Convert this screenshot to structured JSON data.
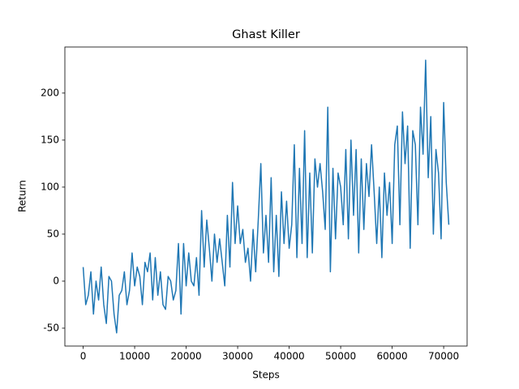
{
  "chart_data": {
    "type": "line",
    "title": "Ghast Killer",
    "x_label": "Steps",
    "y_label": "Return",
    "x": [
      0,
      500,
      1000,
      1500,
      2000,
      2500,
      3000,
      3500,
      4000,
      4500,
      5000,
      5500,
      6000,
      6500,
      7000,
      7500,
      8000,
      8500,
      9000,
      9500,
      10000,
      10500,
      11000,
      11500,
      12000,
      12500,
      13000,
      13500,
      14000,
      14500,
      15000,
      15500,
      16000,
      16500,
      17000,
      17500,
      18000,
      18500,
      19000,
      19500,
      20000,
      20500,
      21000,
      21500,
      22000,
      22500,
      23000,
      23500,
      24000,
      24500,
      25000,
      25500,
      26000,
      26500,
      27000,
      27500,
      28000,
      28500,
      29000,
      29500,
      30000,
      30500,
      31000,
      31500,
      32000,
      32500,
      33000,
      33500,
      34000,
      34500,
      35000,
      35500,
      36000,
      36500,
      37000,
      37500,
      38000,
      38500,
      39000,
      39500,
      40000,
      40500,
      41000,
      41500,
      42000,
      42500,
      43000,
      43500,
      44000,
      44500,
      45000,
      45500,
      46000,
      46500,
      47000,
      47500,
      48000,
      48500,
      49000,
      49500,
      50000,
      50500,
      51000,
      51500,
      52000,
      52500,
      53000,
      53500,
      54000,
      54500,
      55000,
      55500,
      56000,
      56500,
      57000,
      57500,
      58000,
      58500,
      59000,
      59500,
      60000,
      60500,
      61000,
      61500,
      62000,
      62500,
      63000,
      63500,
      64000,
      64500,
      65000,
      65500,
      66000,
      66500,
      67000,
      67500,
      68000,
      68500,
      69000,
      69500,
      70000,
      70500,
      71000
    ],
    "series": [
      {
        "color": "#1f77b4",
        "values": [
          15,
          -25,
          -15,
          10,
          -35,
          0,
          -20,
          15,
          -25,
          -45,
          5,
          0,
          -35,
          -55,
          -15,
          -10,
          10,
          -25,
          -10,
          30,
          -5,
          15,
          5,
          -25,
          20,
          10,
          30,
          -20,
          25,
          -15,
          10,
          -25,
          -30,
          5,
          0,
          -20,
          -10,
          40,
          -35,
          40,
          -5,
          30,
          0,
          -5,
          25,
          -15,
          75,
          15,
          65,
          35,
          0,
          50,
          20,
          45,
          20,
          -5,
          70,
          15,
          105,
          40,
          80,
          40,
          55,
          20,
          35,
          0,
          55,
          10,
          65,
          125,
          30,
          70,
          20,
          110,
          10,
          70,
          5,
          95,
          40,
          85,
          35,
          60,
          145,
          25,
          120,
          40,
          160,
          25,
          115,
          30,
          130,
          100,
          125,
          95,
          55,
          185,
          10,
          120,
          45,
          115,
          100,
          60,
          140,
          45,
          150,
          70,
          140,
          30,
          130,
          55,
          125,
          90,
          145,
          95,
          40,
          100,
          25,
          115,
          70,
          105,
          40,
          145,
          165,
          60,
          180,
          125,
          165,
          35,
          160,
          145,
          60,
          185,
          135,
          235,
          110,
          175,
          50,
          140,
          115,
          45,
          190,
          105,
          60
        ]
      }
    ],
    "xlim": [
      -3550,
      74550
    ],
    "ylim": [
      -69,
      249
    ],
    "xticks": [
      0,
      10000,
      20000,
      30000,
      40000,
      50000,
      60000,
      70000
    ],
    "yticks": [
      -50,
      0,
      50,
      100,
      150,
      200
    ]
  }
}
